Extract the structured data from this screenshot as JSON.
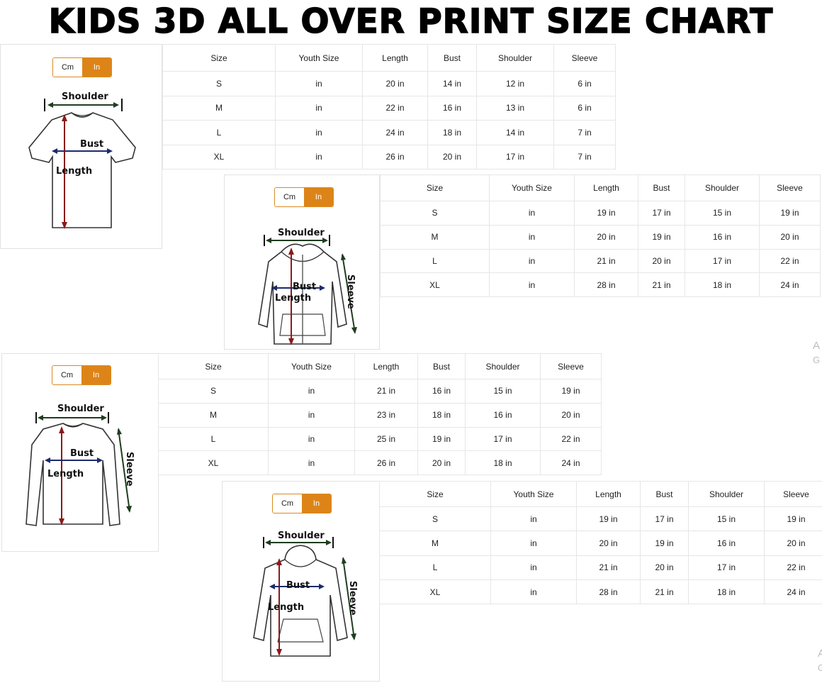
{
  "title": "KIDS 3D ALL OVER PRINT SIZE CHART",
  "colors": {
    "toggle_active": "#dd8419",
    "length_arrow": "#8b1a1a",
    "bust_arrow": "#1d2a6b",
    "shoulder_arrow": "#1f3d1f"
  },
  "sections": [
    {
      "garment": "t-shirt",
      "toggle": {
        "cm": "Cm",
        "in": "In",
        "selected": "In"
      },
      "labels": {
        "shoulder": "Shoulder",
        "bust": "Bust",
        "length": "Length"
      },
      "header": [
        "Size",
        "Youth Size",
        "Length",
        "Bust",
        "Shoulder",
        "Sleeve"
      ],
      "rows": [
        [
          "S",
          "in",
          "20 in",
          "14 in",
          "12 in",
          "6 in"
        ],
        [
          "M",
          "in",
          "22 in",
          "16 in",
          "13 in",
          "6 in"
        ],
        [
          "L",
          "in",
          "24 in",
          "18 in",
          "14 in",
          "7 in"
        ],
        [
          "XL",
          "in",
          "26 in",
          "20 in",
          "17 in",
          "7 in"
        ]
      ]
    },
    {
      "garment": "zip-hoodie",
      "toggle": {
        "cm": "Cm",
        "in": "In",
        "selected": "In"
      },
      "labels": {
        "shoulder": "Shoulder",
        "bust": "Bust",
        "length": "Length",
        "sleeve": "Sleeve"
      },
      "header": [
        "Size",
        "Youth Size",
        "Length",
        "Bust",
        "Shoulder",
        "Sleeve"
      ],
      "rows": [
        [
          "S",
          "in",
          "19 in",
          "17 in",
          "15 in",
          "19 in"
        ],
        [
          "M",
          "in",
          "20 in",
          "19 in",
          "16 in",
          "20 in"
        ],
        [
          "L",
          "in",
          "21 in",
          "20 in",
          "17 in",
          "22 in"
        ],
        [
          "XL",
          "in",
          "28 in",
          "21 in",
          "18 in",
          "24 in"
        ]
      ]
    },
    {
      "garment": "long-sleeve",
      "toggle": {
        "cm": "Cm",
        "in": "In",
        "selected": "In"
      },
      "labels": {
        "shoulder": "Shoulder",
        "bust": "Bust",
        "length": "Length",
        "sleeve": "Sleeve"
      },
      "header": [
        "Size",
        "Youth Size",
        "Length",
        "Bust",
        "Shoulder",
        "Sleeve"
      ],
      "rows": [
        [
          "S",
          "in",
          "21 in",
          "16 in",
          "15 in",
          "19 in"
        ],
        [
          "M",
          "in",
          "23 in",
          "18 in",
          "16 in",
          "20 in"
        ],
        [
          "L",
          "in",
          "25 in",
          "19 in",
          "17 in",
          "22 in"
        ],
        [
          "XL",
          "in",
          "26 in",
          "20 in",
          "18 in",
          "24 in"
        ]
      ]
    },
    {
      "garment": "pullover-hoodie",
      "toggle": {
        "cm": "Cm",
        "in": "In",
        "selected": "In"
      },
      "labels": {
        "shoulder": "Shoulder",
        "bust": "Bust",
        "length": "Length",
        "sleeve": "Sleeve"
      },
      "header": [
        "Size",
        "Youth Size",
        "Length",
        "Bust",
        "Shoulder",
        "Sleeve"
      ],
      "rows": [
        [
          "S",
          "in",
          "19 in",
          "17 in",
          "15 in",
          "19 in"
        ],
        [
          "M",
          "in",
          "20 in",
          "19 in",
          "16 in",
          "20 in"
        ],
        [
          "L",
          "in",
          "21 in",
          "20 in",
          "17 in",
          "22 in"
        ],
        [
          "XL",
          "in",
          "28 in",
          "21 in",
          "18 in",
          "24 in"
        ]
      ]
    }
  ],
  "watermark": [
    {
      "line1": "A",
      "line2": "G"
    },
    {
      "line1": "A",
      "line2": "G"
    }
  ]
}
